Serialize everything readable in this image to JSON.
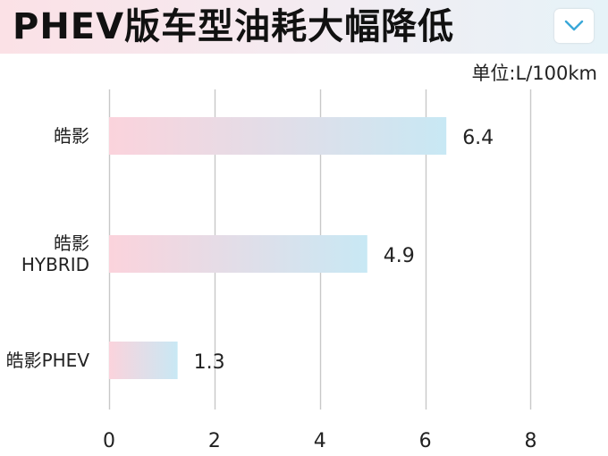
{
  "header": {
    "title": "PHEV版车型油耗大幅降低",
    "dropdown_icon": "chevron-down-icon"
  },
  "colors": {
    "bar_start": "#fbd3dc",
    "bar_end": "#c8e8f4",
    "grid": "#c8c8c8",
    "chevron": "#3aa8d8"
  },
  "chart_data": {
    "type": "bar",
    "orientation": "horizontal",
    "title": "PHEV版车型油耗大幅降低",
    "unit": "单位:L/100km",
    "categories": [
      [
        "皓影"
      ],
      [
        "皓影",
        "HYBRID"
      ],
      [
        "皓影PHEV"
      ]
    ],
    "values": [
      6.4,
      4.9,
      1.3
    ],
    "value_labels": [
      "6.4",
      "4.9",
      "1.3"
    ],
    "xlim": [
      0,
      9.4
    ],
    "xticks": [
      0,
      2,
      4,
      6,
      8
    ],
    "tick_labels": [
      "0",
      "2",
      "4",
      "6",
      "8"
    ],
    "grid": true
  }
}
